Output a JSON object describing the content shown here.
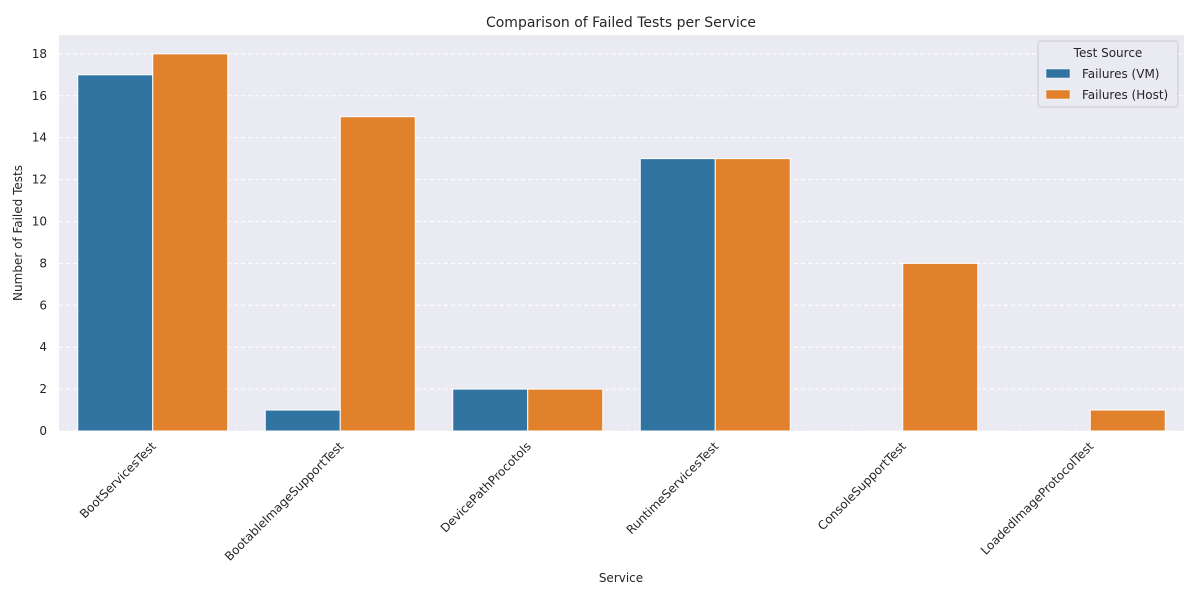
{
  "chart_data": {
    "type": "bar",
    "title": "Comparison of Failed Tests per Service",
    "xlabel": "Service",
    "ylabel": "Number of Failed Tests",
    "categories": [
      "BootServicesTest",
      "BootableImageSupportTest",
      "DevicePathProcotols",
      "RuntimeServicesTest",
      "ConsoleSupportTest",
      "LoadedImageProtocolTest"
    ],
    "series": [
      {
        "name": "Failures (VM)",
        "color": "#3274a1",
        "values": [
          17,
          1,
          2,
          13,
          0,
          0
        ]
      },
      {
        "name": "Failures (Host)",
        "color": "#e1812c",
        "values": [
          18,
          15,
          2,
          13,
          8,
          1
        ]
      }
    ],
    "ylim": [
      0,
      18.9
    ],
    "yticks": [
      0,
      2,
      4,
      6,
      8,
      10,
      12,
      14,
      16,
      18
    ],
    "grid": true,
    "legend": {
      "title": "Test Source",
      "position": "top-right"
    },
    "colors": {
      "plot_background": "#eaeaf2",
      "grid": "#ffffff"
    }
  }
}
